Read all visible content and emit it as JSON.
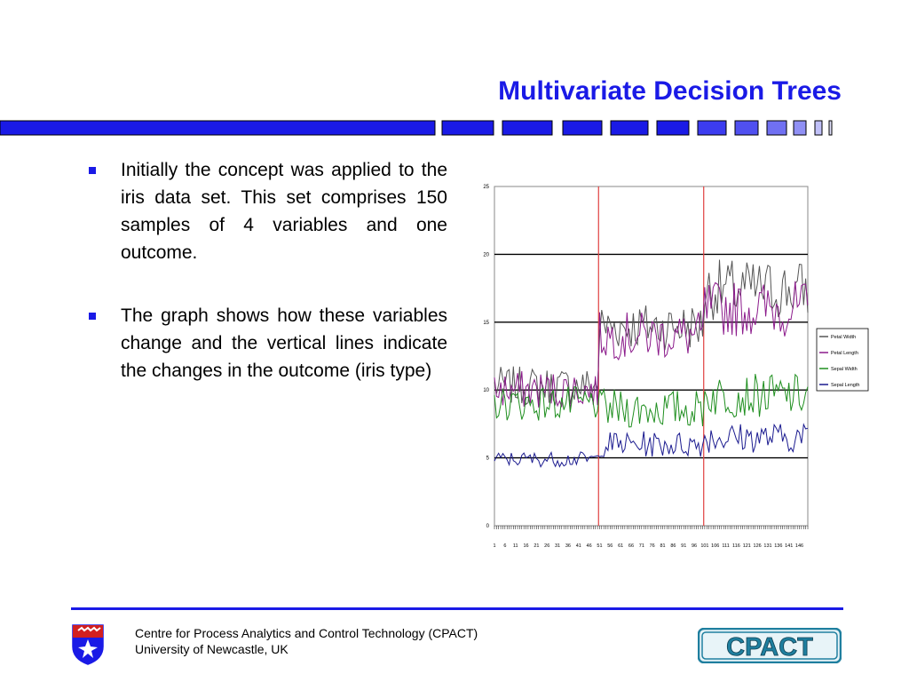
{
  "slide": {
    "title": "Multivariate Decision Trees",
    "bullets": [
      {
        "text": "Initially the concept was applied to the iris data set.  This set comprises 150 samples of 4 variables and one outcome."
      },
      {
        "text": "The graph shows how these variables change and the vertical lines indicate the changes in the outcome (iris type)"
      }
    ],
    "footer": {
      "line1": "Centre for Process Analytics and Control Technology   (CPACT)",
      "line2": "University of Newcastle, UK",
      "logo_text": "CPACT"
    },
    "colors": {
      "accent": "#1a1ae6",
      "logo": "#1f7f9f"
    },
    "icons": {
      "crest": "university-crest-icon"
    }
  },
  "chart_data": {
    "type": "line",
    "xlim": [
      1,
      150
    ],
    "ylim": [
      0,
      25
    ],
    "yticks": [
      0,
      5,
      10,
      15,
      20,
      25
    ],
    "xticks": [
      1,
      6,
      11,
      16,
      21,
      26,
      31,
      36,
      41,
      46,
      51,
      56,
      61,
      66,
      71,
      76,
      81,
      86,
      91,
      96,
      101,
      106,
      111,
      116,
      121,
      126,
      131,
      136,
      141,
      146
    ],
    "grid": "horizontal",
    "legend_position": "right",
    "vertical_markers": [
      50.5,
      100.5
    ],
    "series": [
      {
        "name": "Petal Width",
        "color": "#555555",
        "segments": [
          [
            1,
            50,
            10.3,
            0.9
          ],
          [
            51,
            100,
            14.7,
            1.1
          ],
          [
            101,
            150,
            17.4,
            1.4
          ]
        ]
      },
      {
        "name": "Petal Length",
        "color": "#8b1a8b",
        "segments": [
          [
            1,
            50,
            10.0,
            0.9
          ],
          [
            51,
            100,
            14.0,
            1.1
          ],
          [
            101,
            150,
            16.0,
            1.3
          ]
        ]
      },
      {
        "name": "Sepal Width",
        "color": "#1f8f1f",
        "segments": [
          [
            1,
            50,
            9.0,
            0.8
          ],
          [
            51,
            100,
            8.6,
            0.9
          ],
          [
            101,
            150,
            9.6,
            1.0
          ]
        ]
      },
      {
        "name": "Sepal Length",
        "color": "#1a1a8f",
        "segments": [
          [
            1,
            50,
            4.9,
            0.35
          ],
          [
            51,
            100,
            6.0,
            0.6
          ],
          [
            101,
            150,
            6.5,
            0.7
          ]
        ]
      }
    ]
  }
}
